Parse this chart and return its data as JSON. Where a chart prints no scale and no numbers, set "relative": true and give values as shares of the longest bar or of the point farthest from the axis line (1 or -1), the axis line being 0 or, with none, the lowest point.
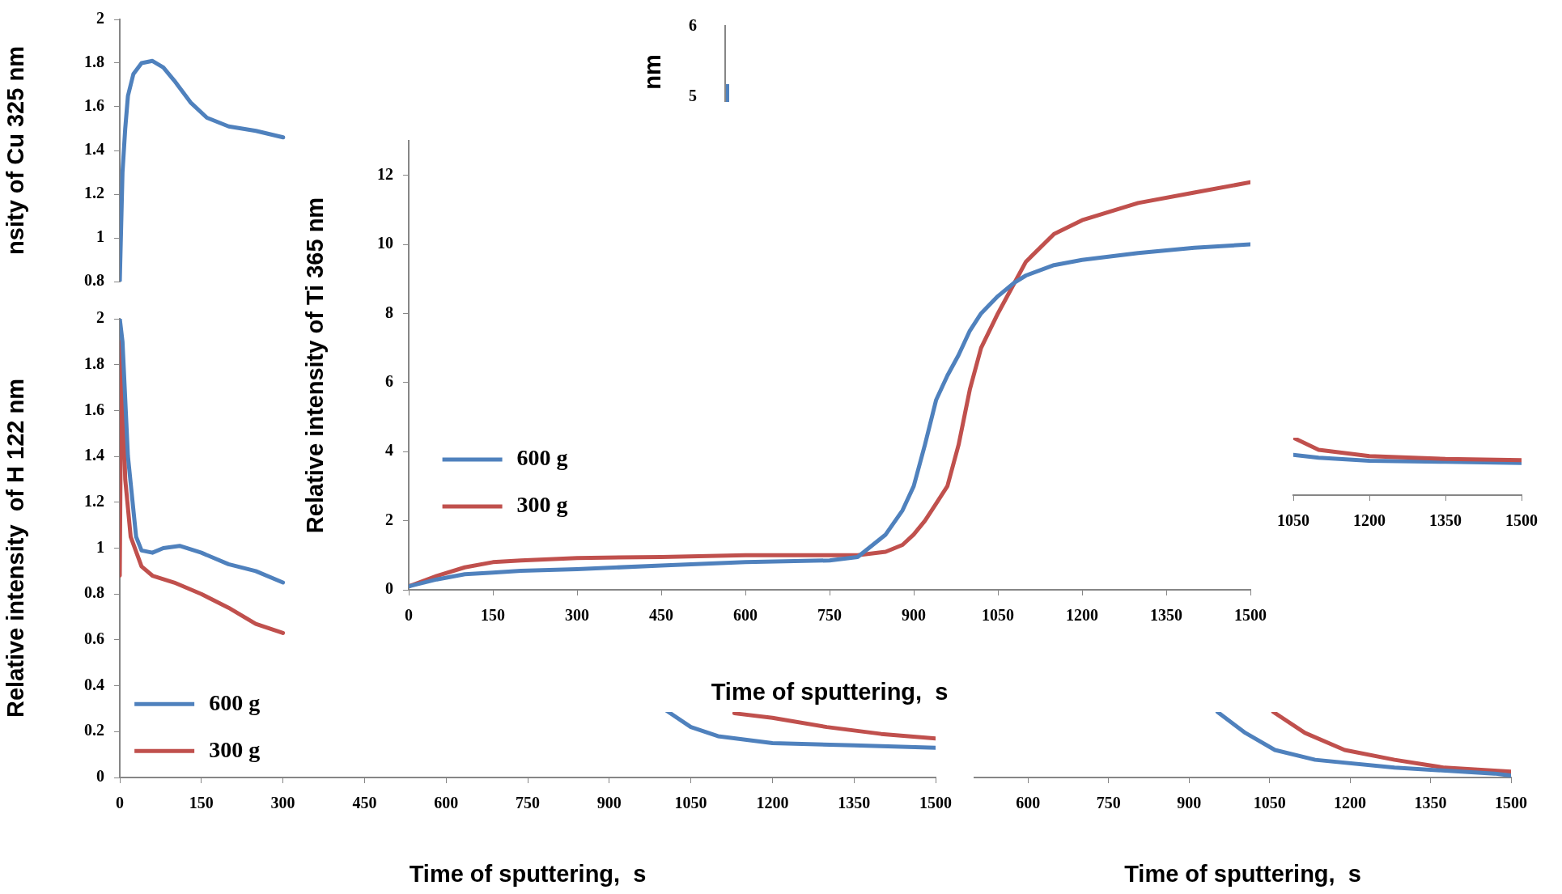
{
  "chart_data": [
    {
      "type": "line",
      "ylabel": "nsity of Cu 325 nm",
      "xlim": [
        0,
        1500
      ],
      "ylim": [
        0.8,
        2
      ],
      "yticks": [
        0.8,
        1,
        1.2,
        1.4,
        1.6,
        1.8,
        2
      ],
      "grid": false,
      "tick_labels": "y",
      "marker": "none",
      "series": [
        {
          "color": "#4f81bd",
          "x": [
            0,
            2,
            5,
            10,
            15,
            25,
            40,
            60,
            80,
            100,
            130,
            160,
            200,
            250,
            300
          ],
          "values": [
            0.8,
            1.0,
            1.3,
            1.5,
            1.65,
            1.75,
            1.8,
            1.81,
            1.78,
            1.72,
            1.62,
            1.55,
            1.51,
            1.49,
            1.46
          ]
        }
      ]
    },
    {
      "type": "other",
      "annotations": [
        "nm",
        "6",
        "5"
      ]
    },
    {
      "type": "line",
      "ylabel": "Relative intensity of Ti 365 nm",
      "xlabel": "Time of sputtering,  s",
      "xlim": [
        0,
        1500
      ],
      "xticks": [
        0,
        150,
        300,
        450,
        600,
        750,
        900,
        1050,
        1200,
        1350,
        1500
      ],
      "ylim": [
        0,
        13
      ],
      "yticks": [
        0,
        2,
        4,
        6,
        8,
        10,
        12
      ],
      "grid": false,
      "legend": "left",
      "marker": "none",
      "x": [
        0,
        50,
        100,
        150,
        200,
        300,
        450,
        600,
        750,
        800,
        850,
        880,
        900,
        920,
        940,
        960,
        980,
        1000,
        1020,
        1050,
        1080,
        1100,
        1150,
        1200,
        1300,
        1400,
        1500
      ],
      "series": [
        {
          "name": "600 g",
          "color": "#4f81bd",
          "values": [
            0.1,
            0.3,
            0.45,
            0.5,
            0.55,
            0.6,
            0.7,
            0.8,
            0.85,
            0.95,
            1.6,
            2.3,
            3.0,
            4.2,
            5.5,
            6.2,
            6.8,
            7.5,
            8.0,
            8.5,
            8.9,
            9.1,
            9.4,
            9.55,
            9.75,
            9.9,
            10.0
          ]
        },
        {
          "name": "300 g",
          "color": "#c0504d",
          "values": [
            0.1,
            0.4,
            0.65,
            0.8,
            0.85,
            0.92,
            0.95,
            1.0,
            1.0,
            1.0,
            1.1,
            1.3,
            1.6,
            2.0,
            2.5,
            3.0,
            4.2,
            5.8,
            7.0,
            8.0,
            8.9,
            9.5,
            10.3,
            10.7,
            11.2,
            11.5,
            11.8
          ]
        }
      ]
    },
    {
      "type": "line",
      "relative": true,
      "xlim": [
        1050,
        1500
      ],
      "xticks": [
        1050,
        1200,
        1350,
        1500
      ],
      "grid": false,
      "tick_labels": "x",
      "marker": "none",
      "x": [
        1050,
        1100,
        1200,
        1350,
        1500
      ],
      "series": [
        {
          "color": "#c0504d",
          "values": [
            1,
            0.79,
            0.68,
            0.63,
            0.61
          ]
        },
        {
          "color": "#4f81bd",
          "values": [
            0.7,
            0.65,
            0.6,
            0.58,
            0.56
          ]
        }
      ]
    },
    {
      "type": "line",
      "ylabel": "Relative intensity  of H 122 nm",
      "xlabel": "Time of sputtering,  s",
      "xlim": [
        0,
        1500
      ],
      "xticks": [
        0,
        150,
        300,
        450,
        600,
        750,
        900,
        1050,
        1200,
        1350,
        1500
      ],
      "ylim": [
        0,
        2
      ],
      "yticks": [
        0,
        0.2,
        0.4,
        0.6,
        0.8,
        1,
        1.2,
        1.4,
        1.6,
        1.8,
        2
      ],
      "grid": false,
      "legend": "bottom left",
      "marker": "none",
      "series": [
        {
          "name": "600 g",
          "color": "#4f81bd",
          "x": [
            0,
            5,
            15,
            30,
            40,
            60,
            80,
            110,
            150,
            200,
            250,
            300,
            650,
            1000,
            1050,
            1100,
            1200,
            1350,
            1500
          ],
          "values": [
            2.0,
            1.9,
            1.4,
            1.05,
            0.99,
            0.98,
            1.0,
            1.01,
            0.98,
            0.93,
            0.9,
            0.85,
            null,
            0.3,
            0.22,
            0.18,
            0.15,
            0.14,
            0.13
          ]
        },
        {
          "name": "300 g",
          "color": "#c0504d",
          "x": [
            0,
            3,
            10,
            20,
            40,
            60,
            100,
            150,
            200,
            250,
            300,
            700,
            1130,
            1200,
            1300,
            1400,
            1500
          ],
          "values": [
            0.88,
            1.9,
            1.3,
            1.05,
            0.92,
            0.88,
            0.85,
            0.8,
            0.74,
            0.67,
            0.63,
            null,
            0.28,
            0.26,
            0.22,
            0.19,
            0.17
          ]
        }
      ]
    },
    {
      "type": "line",
      "relative": true,
      "xlabel": "Time of sputtering,  s",
      "xlim": [
        500,
        1500
      ],
      "xticks": [
        600,
        750,
        900,
        1050,
        1200,
        1350,
        1500
      ],
      "grid": false,
      "tick_labels": "x",
      "marker": "none",
      "series": [
        {
          "color": "#4f81bd",
          "x": [
            953,
            1005,
            1060,
            1135,
            1283,
            1469,
            1500
          ],
          "values": [
            1,
            0.68,
            0.42,
            0.27,
            0.15,
            0.06,
            0.03
          ]
        },
        {
          "color": "#c0504d",
          "x": [
            1057,
            1116,
            1190,
            1283,
            1376,
            1500
          ],
          "values": [
            1,
            0.68,
            0.42,
            0.27,
            0.15,
            0.09
          ]
        }
      ]
    }
  ]
}
